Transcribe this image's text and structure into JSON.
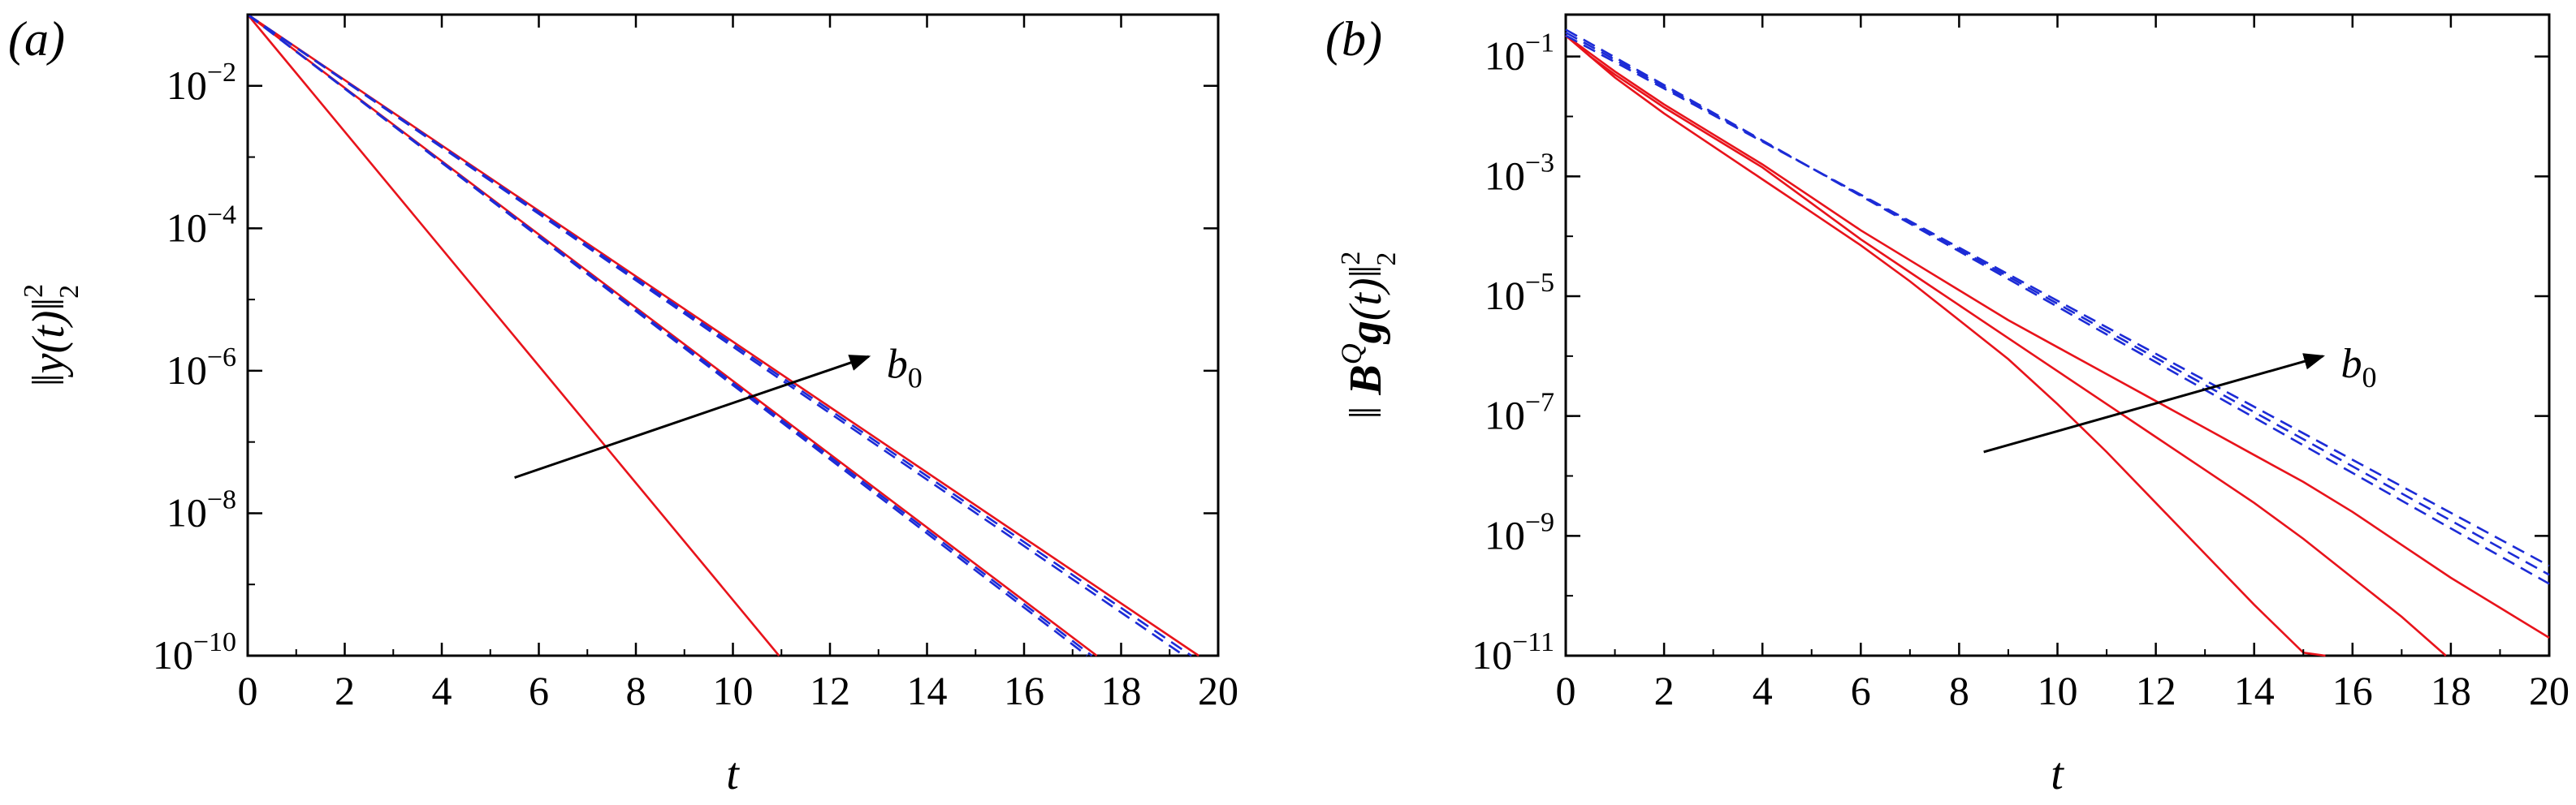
{
  "chart_data": [
    {
      "panel_label": "(a)",
      "type": "line",
      "xlabel": "t",
      "ylabel": {
        "prefix": "‖",
        "var": "y",
        "arg": "(t)",
        "suffix": "‖",
        "sup": "2",
        "sub": "2"
      },
      "yscale": "log",
      "xlim": [
        0,
        20
      ],
      "ylim_exp": [
        -10,
        -1
      ],
      "x_ticks": [
        "0",
        "2",
        "4",
        "6",
        "8",
        "10",
        "12",
        "14",
        "16",
        "18",
        "20"
      ],
      "y_tick_base": "10",
      "y_tick_exponents": [
        "−10",
        "−8",
        "−6",
        "−4",
        "−2"
      ],
      "annotation": {
        "text": "b",
        "sub": "0",
        "arrow_from": [
          5.5,
          -7.5
        ],
        "arrow_to": [
          12.8,
          -5.8
        ]
      },
      "series": [
        {
          "name": "solid-1",
          "style": "solid",
          "color": "#e8131b",
          "points": [
            [
              0,
              -1
            ],
            [
              10.95,
              -10
            ]
          ]
        },
        {
          "name": "solid-2",
          "style": "solid",
          "color": "#e8131b",
          "points": [
            [
              0,
              -1
            ],
            [
              17.5,
              -10
            ]
          ]
        },
        {
          "name": "solid-3",
          "style": "solid",
          "color": "#e8131b",
          "points": [
            [
              0,
              -1
            ],
            [
              19.6,
              -10
            ]
          ]
        },
        {
          "name": "dashed-1",
          "style": "dashed",
          "color": "#1c2bd6",
          "points": [
            [
              0,
              -1
            ],
            [
              17.3,
              -10
            ]
          ]
        },
        {
          "name": "dashed-2",
          "style": "dashed",
          "color": "#1c2bd6",
          "points": [
            [
              0,
              -1
            ],
            [
              17.4,
              -10
            ]
          ]
        },
        {
          "name": "dashed-3",
          "style": "dashed",
          "color": "#1c2bd6",
          "points": [
            [
              0,
              -1
            ],
            [
              19.3,
              -10
            ]
          ]
        },
        {
          "name": "dashed-4",
          "style": "dashed",
          "color": "#1c2bd6",
          "points": [
            [
              0,
              -1
            ],
            [
              19.45,
              -10
            ]
          ]
        }
      ]
    },
    {
      "panel_label": "(b)",
      "type": "line",
      "xlabel": "t",
      "ylabel": {
        "prefix": "‖ ",
        "var": "B",
        "sup_var": "Q",
        "var2": "g",
        "arg": "(t)",
        "suffix": "‖",
        "sup": "2",
        "sub": "2"
      },
      "yscale": "log",
      "xlim": [
        0,
        20
      ],
      "ylim_exp": [
        -11,
        -0.3
      ],
      "x_ticks": [
        "0",
        "2",
        "4",
        "6",
        "8",
        "10",
        "12",
        "14",
        "16",
        "18",
        "20"
      ],
      "y_tick_base": "10",
      "y_tick_exponents": [
        "−11",
        "−9",
        "−7",
        "−5",
        "−3",
        "−1"
      ],
      "annotation": {
        "text": "b",
        "sub": "0",
        "arrow_from": [
          8.5,
          -7.6
        ],
        "arrow_to": [
          15.4,
          -6.0
        ]
      },
      "series": [
        {
          "name": "solid-1",
          "style": "solid",
          "color": "#e8131b",
          "points": [
            [
              0,
              -0.65
            ],
            [
              0.5,
              -1.0
            ],
            [
              1,
              -1.35
            ],
            [
              2,
              -1.95
            ],
            [
              3,
              -2.5
            ],
            [
              4,
              -3.05
            ],
            [
              5,
              -3.6
            ],
            [
              6,
              -4.15
            ],
            [
              7,
              -4.75
            ],
            [
              8,
              -5.4
            ],
            [
              9,
              -6.05
            ],
            [
              10,
              -6.8
            ],
            [
              11,
              -7.6
            ],
            [
              12,
              -8.45
            ],
            [
              13,
              -9.3
            ],
            [
              14,
              -10.15
            ],
            [
              15,
              -10.95
            ],
            [
              15.45,
              -11
            ]
          ]
        },
        {
          "name": "solid-2",
          "style": "solid",
          "color": "#e8131b",
          "points": [
            [
              0,
              -0.65
            ],
            [
              0.5,
              -1.0
            ],
            [
              1,
              -1.3
            ],
            [
              2,
              -1.85
            ],
            [
              3,
              -2.35
            ],
            [
              4,
              -2.85
            ],
            [
              5,
              -3.45
            ],
            [
              6,
              -4.05
            ],
            [
              7,
              -4.6
            ],
            [
              8,
              -5.15
            ],
            [
              9,
              -5.7
            ],
            [
              10,
              -6.25
            ],
            [
              11,
              -6.8
            ],
            [
              12,
              -7.35
            ],
            [
              13,
              -7.9
            ],
            [
              14,
              -8.45
            ],
            [
              15,
              -9.05
            ],
            [
              16,
              -9.7
            ],
            [
              17,
              -10.35
            ],
            [
              17.9,
              -11
            ]
          ]
        },
        {
          "name": "solid-3",
          "style": "solid",
          "color": "#e8131b",
          "points": [
            [
              0,
              -0.65
            ],
            [
              0.5,
              -0.95
            ],
            [
              1,
              -1.25
            ],
            [
              2,
              -1.8
            ],
            [
              3,
              -2.3
            ],
            [
              4,
              -2.8
            ],
            [
              5,
              -3.35
            ],
            [
              6,
              -3.9
            ],
            [
              7,
              -4.4
            ],
            [
              8,
              -4.9
            ],
            [
              9,
              -5.4
            ],
            [
              10,
              -5.85
            ],
            [
              11,
              -6.3
            ],
            [
              12,
              -6.75
            ],
            [
              13,
              -7.2
            ],
            [
              14,
              -7.65
            ],
            [
              15,
              -8.1
            ],
            [
              16,
              -8.6
            ],
            [
              17,
              -9.15
            ],
            [
              18,
              -9.7
            ],
            [
              19,
              -10.2
            ],
            [
              20,
              -10.7
            ]
          ]
        },
        {
          "name": "dashed-1",
          "style": "dashed",
          "color": "#1c2bd6",
          "points": [
            [
              0,
              -0.55
            ],
            [
              20,
              -9.8
            ]
          ]
        },
        {
          "name": "dashed-2",
          "style": "dashed",
          "color": "#1c2bd6",
          "points": [
            [
              0,
              -0.6
            ],
            [
              20,
              -9.65
            ]
          ]
        },
        {
          "name": "dashed-3",
          "style": "dashed",
          "color": "#1c2bd6",
          "points": [
            [
              0,
              -0.65
            ],
            [
              20,
              -9.5
            ]
          ]
        }
      ]
    }
  ]
}
